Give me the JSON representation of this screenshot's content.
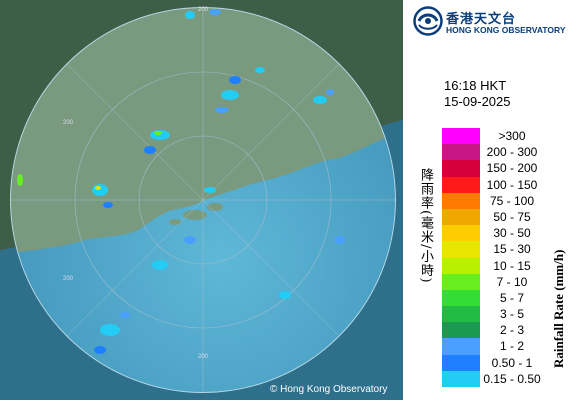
{
  "branding": {
    "name_cn": "香港天文台",
    "name_en": "HONG KONG OBSERVATORY",
    "brand_color": "#0a3e7a"
  },
  "timestamp": {
    "time": "16:18 HKT",
    "date": "15-09-2025"
  },
  "legend": {
    "title_cn": "降雨率(毫米/小時)",
    "title_en": "Rainfall Rate (mm/h)",
    "items": [
      {
        "label": ">300",
        "color": "#ff00ff"
      },
      {
        "label": "200 - 300",
        "color": "#c71585"
      },
      {
        "label": "150 - 200",
        "color": "#d7003c"
      },
      {
        "label": "100 - 150",
        "color": "#ff1a1a"
      },
      {
        "label": "75 - 100",
        "color": "#ff7a00"
      },
      {
        "label": "50 - 75",
        "color": "#f0a800"
      },
      {
        "label": "30 - 50",
        "color": "#ffcc00"
      },
      {
        "label": "15 - 30",
        "color": "#e6e600"
      },
      {
        "label": "10 - 15",
        "color": "#b8f000"
      },
      {
        "label": "7 - 10",
        "color": "#66ee22"
      },
      {
        "label": "5 - 7",
        "color": "#33dd33"
      },
      {
        "label": "3 - 5",
        "color": "#22bb44"
      },
      {
        "label": "2 - 3",
        "color": "#1a9950"
      },
      {
        "label": "1 - 2",
        "color": "#4aa0ff"
      },
      {
        "label": "0.50 - 1",
        "color": "#1e80ff"
      },
      {
        "label": "0.15 - 0.50",
        "color": "#22ccf5"
      }
    ]
  },
  "map": {
    "range_labels": [
      "200",
      "200",
      "200",
      "200"
    ],
    "copyright": "© Hong Kong Observatory"
  }
}
